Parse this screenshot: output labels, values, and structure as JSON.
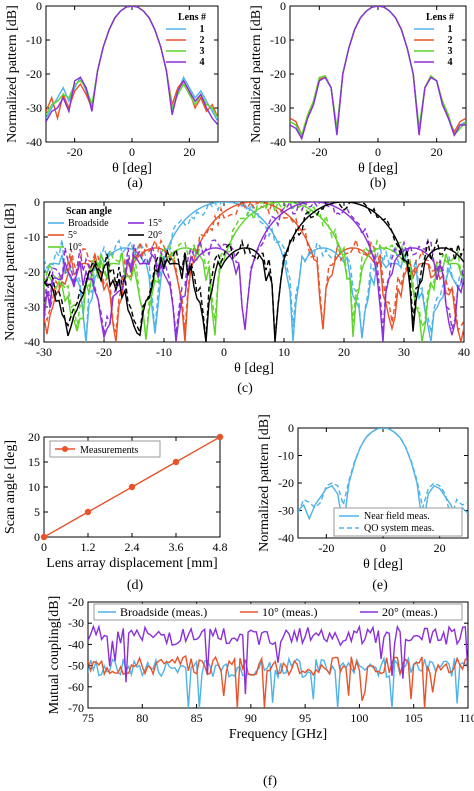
{
  "colors": {
    "lens1": "#4fb3e8",
    "lens2": "#e8532a",
    "lens3": "#5fd42a",
    "lens4": "#8b2fd9",
    "black": "#000000",
    "meas_orange": "#e8532a"
  },
  "chart_data": [
    {
      "id": "a",
      "type": "line",
      "caption": "(a)",
      "xlabel": "θ [deg]",
      "ylabel": "Normalized pattern [dB]",
      "xlim": [
        -30,
        30
      ],
      "ylim": [
        -40,
        0
      ],
      "xticks": [
        -20,
        0,
        20
      ],
      "yticks": [
        0,
        -10,
        -20,
        -30,
        -40
      ],
      "legend": {
        "title": "Lens #",
        "position": "top-right"
      },
      "series": [
        {
          "name": "1",
          "color": "#4fb3e8",
          "x": [
            -30,
            -28,
            -26,
            -24,
            -22,
            -20,
            -18,
            -16,
            -14,
            -12,
            -10,
            -8,
            -6,
            -4,
            -2,
            0,
            2,
            4,
            6,
            8,
            10,
            12,
            14,
            16,
            18,
            20,
            22,
            24,
            26,
            28,
            30
          ],
          "y": [
            -33,
            -30,
            -27,
            -24,
            -28,
            -24,
            -21,
            -25,
            -30,
            -19,
            -12,
            -7,
            -3.5,
            -1.5,
            -0.3,
            0,
            -0.3,
            -1.5,
            -3.5,
            -7,
            -12,
            -19,
            -31,
            -25,
            -21,
            -24,
            -27,
            -25,
            -28,
            -31,
            -34
          ]
        },
        {
          "name": "2",
          "color": "#e8532a",
          "x": [
            -30,
            -28,
            -26,
            -24,
            -22,
            -20,
            -18,
            -16,
            -14,
            -12,
            -10,
            -8,
            -6,
            -4,
            -2,
            0,
            2,
            4,
            6,
            8,
            10,
            12,
            14,
            16,
            18,
            20,
            22,
            24,
            26,
            28,
            30
          ],
          "y": [
            -31,
            -27,
            -33,
            -26,
            -30,
            -25,
            -23,
            -26,
            -30,
            -19,
            -12,
            -7,
            -3.5,
            -1.5,
            -0.3,
            0,
            -0.3,
            -1.5,
            -3.5,
            -7,
            -12,
            -19,
            -29,
            -24,
            -22,
            -25,
            -30,
            -27,
            -31,
            -29,
            -33
          ]
        },
        {
          "name": "3",
          "color": "#5fd42a",
          "x": [
            -30,
            -28,
            -26,
            -24,
            -22,
            -20,
            -18,
            -16,
            -14,
            -12,
            -10,
            -8,
            -6,
            -4,
            -2,
            0,
            2,
            4,
            6,
            8,
            10,
            12,
            14,
            16,
            18,
            20,
            22,
            24,
            26,
            28,
            30
          ],
          "y": [
            -32,
            -29,
            -28,
            -26,
            -27,
            -23,
            -22,
            -24,
            -29,
            -19,
            -12,
            -7,
            -3.5,
            -1.5,
            -0.3,
            0,
            -0.3,
            -1.5,
            -3.5,
            -7,
            -12,
            -19,
            -30,
            -26,
            -23,
            -26,
            -29,
            -26,
            -29,
            -30,
            -33
          ]
        },
        {
          "name": "4",
          "color": "#8b2fd9",
          "x": [
            -30,
            -28,
            -26,
            -24,
            -22,
            -20,
            -18,
            -16,
            -14,
            -12,
            -10,
            -8,
            -6,
            -4,
            -2,
            0,
            2,
            4,
            6,
            8,
            10,
            12,
            14,
            16,
            18,
            20,
            22,
            24,
            26,
            28,
            30
          ],
          "y": [
            -34,
            -31,
            -30,
            -27,
            -31,
            -22,
            -21,
            -24,
            -31,
            -19,
            -12,
            -7,
            -3.5,
            -1.5,
            -0.3,
            0,
            -0.3,
            -1.5,
            -3.5,
            -7,
            -12,
            -19,
            -32,
            -25,
            -22,
            -25,
            -28,
            -26,
            -30,
            -33,
            -35
          ]
        }
      ]
    },
    {
      "id": "b",
      "type": "line",
      "caption": "(b)",
      "xlabel": "θ [deg]",
      "ylabel": "Normalized pattern [dB]",
      "xlim": [
        -30,
        30
      ],
      "ylim": [
        -40,
        0
      ],
      "xticks": [
        -20,
        0,
        20
      ],
      "yticks": [
        0,
        -10,
        -20,
        -30,
        -40
      ],
      "legend": {
        "title": "Lens #",
        "position": "top-right"
      },
      "series": [
        {
          "name": "1",
          "color": "#4fb3e8",
          "x": [
            -30,
            -28,
            -26,
            -24,
            -22,
            -20,
            -18,
            -16,
            -14,
            -12,
            -10,
            -8,
            -6,
            -4,
            -2,
            0,
            2,
            4,
            6,
            8,
            10,
            12,
            14,
            16,
            18,
            20,
            22,
            24,
            26,
            28,
            30
          ],
          "y": [
            -34,
            -35,
            -39,
            -33,
            -29,
            -22,
            -21,
            -24,
            -36,
            -20,
            -12.5,
            -7,
            -3.5,
            -1.5,
            -0.3,
            0,
            -0.3,
            -1.5,
            -3.5,
            -7,
            -12.5,
            -20,
            -36,
            -24,
            -21,
            -22,
            -29,
            -33,
            -38,
            -35,
            -34
          ]
        },
        {
          "name": "2",
          "color": "#e8532a",
          "x": [
            -30,
            -28,
            -26,
            -24,
            -22,
            -20,
            -18,
            -16,
            -14,
            -12,
            -10,
            -8,
            -6,
            -4,
            -2,
            0,
            2,
            4,
            6,
            8,
            10,
            12,
            14,
            16,
            18,
            20,
            22,
            24,
            26,
            28,
            30
          ],
          "y": [
            -33,
            -34,
            -38,
            -33,
            -28,
            -21.5,
            -21,
            -24,
            -37,
            -20,
            -12.5,
            -7,
            -3.5,
            -1.5,
            -0.3,
            0,
            -0.3,
            -1.5,
            -3.5,
            -7,
            -12.5,
            -20,
            -37,
            -24,
            -21,
            -22,
            -29,
            -33,
            -37,
            -34,
            -33
          ]
        },
        {
          "name": "3",
          "color": "#5fd42a",
          "x": [
            -30,
            -28,
            -26,
            -24,
            -22,
            -20,
            -18,
            -16,
            -14,
            -12,
            -10,
            -8,
            -6,
            -4,
            -2,
            0,
            2,
            4,
            6,
            8,
            10,
            12,
            14,
            16,
            18,
            20,
            22,
            24,
            26,
            28,
            30
          ],
          "y": [
            -34,
            -35,
            -38,
            -32,
            -28,
            -21,
            -20.5,
            -24,
            -36,
            -20,
            -12.5,
            -7,
            -3.5,
            -1.5,
            -0.3,
            0,
            -0.3,
            -1.5,
            -3.5,
            -7,
            -12.5,
            -20,
            -36,
            -24,
            -20.5,
            -22,
            -28,
            -32,
            -38,
            -36,
            -34
          ]
        },
        {
          "name": "4",
          "color": "#8b2fd9",
          "x": [
            -30,
            -28,
            -26,
            -24,
            -22,
            -20,
            -18,
            -16,
            -14,
            -12,
            -10,
            -8,
            -6,
            -4,
            -2,
            0,
            2,
            4,
            6,
            8,
            10,
            12,
            14,
            16,
            18,
            20,
            22,
            24,
            26,
            28,
            30
          ],
          "y": [
            -35,
            -36,
            -39,
            -33,
            -29,
            -22,
            -21,
            -24,
            -38,
            -20,
            -12.5,
            -7,
            -3.5,
            -1.5,
            -0.3,
            0,
            -0.3,
            -1.5,
            -3.5,
            -7,
            -12.5,
            -20,
            -38,
            -24,
            -21,
            -22,
            -29,
            -33,
            -38,
            -35,
            -35
          ]
        }
      ]
    },
    {
      "id": "c",
      "type": "line",
      "caption": "(c)",
      "xlabel": "θ [deg]",
      "ylabel": "Normalized pattern [dB]",
      "xlim": [
        -30,
        40
      ],
      "ylim": [
        -40,
        0
      ],
      "xticks": [
        -30,
        -20,
        -10,
        0,
        10,
        20,
        30,
        40
      ],
      "yticks": [
        0,
        -10,
        -20,
        -30,
        -40
      ],
      "legend": {
        "title": "Scan angle",
        "position": "top-left"
      },
      "series": [
        {
          "name": "Broadside",
          "color": "#4fb3e8",
          "center": 0,
          "dash": false
        },
        {
          "name": "5°",
          "color": "#e8532a",
          "center": 5,
          "dash": false
        },
        {
          "name": "10°",
          "color": "#5fd42a",
          "center": 10,
          "dash": false
        },
        {
          "name": "15°",
          "color": "#8b2fd9",
          "center": 15,
          "dash": false
        },
        {
          "name": "20°",
          "color": "#000000",
          "center": 20,
          "dash": false
        }
      ]
    },
    {
      "id": "d",
      "type": "line",
      "caption": "(d)",
      "xlabel": "Lens array displacement [mm]",
      "ylabel": "Scan angle [deg]",
      "xlim": [
        0,
        4.8
      ],
      "ylim": [
        0,
        20
      ],
      "xticks": [
        0,
        1.2,
        2.4,
        3.6,
        4.8
      ],
      "yticks": [
        0,
        5,
        10,
        15,
        20
      ],
      "legend": {
        "position": "top-left"
      },
      "series": [
        {
          "name": "Measurements",
          "color": "#e8532a",
          "x": [
            0,
            1.2,
            2.4,
            3.6,
            4.8
          ],
          "y": [
            0,
            5,
            10,
            15,
            20
          ]
        }
      ]
    },
    {
      "id": "e",
      "type": "line",
      "caption": "(e)",
      "xlabel": "θ [deg]",
      "ylabel": "Normalized pattern [dB]",
      "xlim": [
        -30,
        30
      ],
      "ylim": [
        -40,
        0
      ],
      "xticks": [
        -20,
        0,
        20
      ],
      "yticks": [
        0,
        -10,
        -20,
        -30,
        -40
      ],
      "legend": {
        "position": "bottom-right"
      },
      "series": [
        {
          "name": "Near field meas.",
          "color": "#4fb3e8",
          "dash": false,
          "x": [
            -30,
            -28,
            -26,
            -24,
            -22,
            -20,
            -18,
            -16,
            -14,
            -12,
            -10,
            -8,
            -6,
            -4,
            -2,
            0,
            2,
            4,
            6,
            8,
            10,
            12,
            14,
            16,
            18,
            20,
            22,
            24,
            26,
            28,
            30
          ],
          "y": [
            -30,
            -28,
            -33,
            -28,
            -25,
            -22,
            -21,
            -24,
            -36,
            -20,
            -12.5,
            -7,
            -3.5,
            -1.5,
            -0.3,
            0,
            -0.3,
            -1.5,
            -3.5,
            -7,
            -12.5,
            -20,
            -36,
            -24,
            -21,
            -22,
            -25,
            -28,
            -34,
            -29,
            -31
          ]
        },
        {
          "name": "QO system meas.",
          "color": "#4fb3e8",
          "dash": true,
          "x": [
            -30,
            -28,
            -26,
            -24,
            -22,
            -20,
            -18,
            -16,
            -14,
            -12,
            -10,
            -8,
            -6,
            -4,
            -2,
            0,
            2,
            4,
            6,
            8,
            10,
            12,
            14,
            16,
            18,
            20,
            22,
            24,
            26,
            28,
            30
          ],
          "y": [
            -31,
            -26,
            -27,
            -29,
            -27,
            -21,
            -20,
            -21,
            -28,
            -19,
            -12,
            -7,
            -3.3,
            -1.4,
            -0.3,
            0,
            -0.3,
            -1.4,
            -3.3,
            -7,
            -12,
            -19,
            -29,
            -22,
            -20,
            -21,
            -24,
            -33,
            -26,
            -28,
            -27
          ]
        }
      ]
    },
    {
      "id": "f",
      "type": "line",
      "caption": "(f)",
      "xlabel": "Frequency [GHz]",
      "ylabel": "Mutual coupling[dB]",
      "xlim": [
        75,
        110
      ],
      "ylim": [
        -70,
        -20
      ],
      "xticks": [
        75,
        80,
        85,
        90,
        95,
        100,
        105,
        110
      ],
      "yticks": [
        -20,
        -30,
        -40,
        -50,
        -60,
        -70
      ],
      "legend": {
        "position": "top"
      },
      "series": [
        {
          "name": "Broadside (meas.)",
          "color": "#4fb3e8",
          "base": -51
        },
        {
          "name": "10° (meas.)",
          "color": "#e8532a",
          "base": -50
        },
        {
          "name": "20° (meas.)",
          "color": "#8b2fd9",
          "base": -36
        }
      ]
    }
  ]
}
